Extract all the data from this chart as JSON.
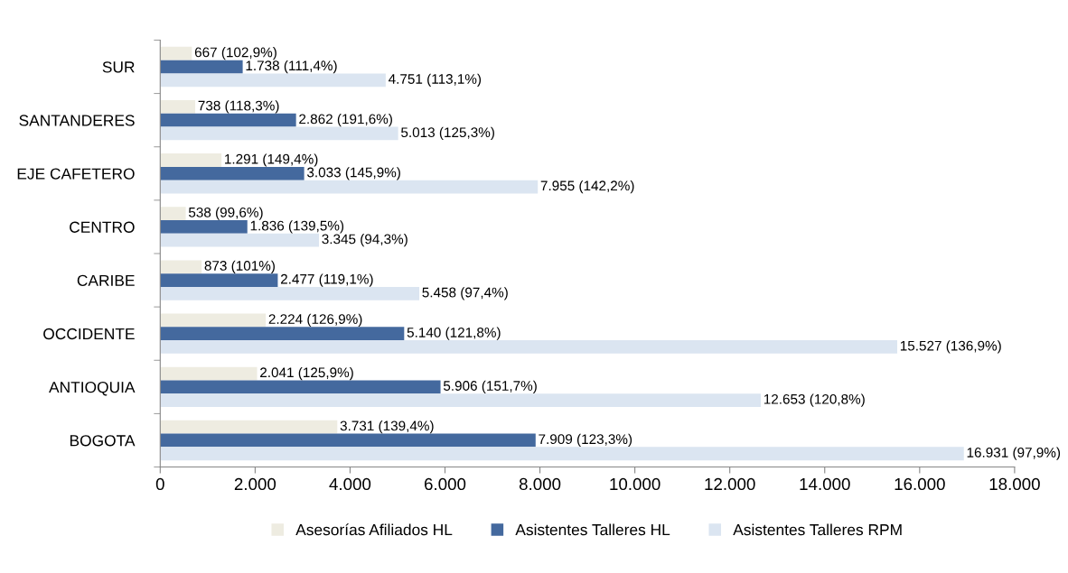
{
  "chart_data": {
    "type": "bar",
    "orientation": "horizontal",
    "categories": [
      "SUR",
      "SANTANDERES",
      "EJE CAFETERO",
      "CENTRO",
      "CARIBE",
      "OCCIDENTE",
      "ANTIOQUIA",
      "BOGOTA"
    ],
    "series": [
      {
        "name": "Asesorías Afiliados HL",
        "color": "#eeece1",
        "values": [
          667,
          738,
          1291,
          538,
          873,
          2224,
          2041,
          3731
        ],
        "value_labels": [
          "667 (102,9%)",
          "738 (118,3%)",
          "1.291 (149,4%)",
          "538 (99,6%)",
          "873 (101%)",
          "2.224 (126,9%)",
          "2.041 (125,9%)",
          "3.731 (139,4%)"
        ]
      },
      {
        "name": "Asistentes Talleres HL",
        "color": "#44699e",
        "values": [
          1738,
          2862,
          3033,
          1836,
          2477,
          5140,
          5906,
          7909
        ],
        "value_labels": [
          "1.738 (111,4%)",
          "2.862 (191,6%)",
          "3.033 (145,9%)",
          "1.836 (139,5%)",
          "2.477 (119,1%)",
          "5.140 (121,8%)",
          "5.906 (151,7%)",
          "7.909 (123,3%)"
        ]
      },
      {
        "name": "Asistentes Talleres RPM",
        "color": "#dbe5f1",
        "values": [
          4751,
          5013,
          7955,
          3345,
          5458,
          15527,
          12653,
          16931
        ],
        "value_labels": [
          "4.751 (113,1%)",
          "5.013 (125,3%)",
          "7.955 (142,2%)",
          "3.345 (94,3%)",
          "5.458 (97,4%)",
          "15.527 (136,9%)",
          "12.653 (120,8%)",
          "16.931 (97,9%)"
        ]
      }
    ],
    "xlim": [
      0,
      18000
    ],
    "xticks": [
      0,
      {
        "value": 2000,
        "label": "2.000"
      },
      {
        "value": 4000,
        "label": "4.000"
      },
      {
        "value": 6000,
        "label": "6.000"
      },
      {
        "value": 8000,
        "label": "8.000"
      },
      {
        "value": 10000,
        "label": "10.000"
      },
      {
        "value": 12000,
        "label": "12.000"
      },
      {
        "value": 14000,
        "label": "14.000"
      },
      {
        "value": 16000,
        "label": "16.000"
      },
      {
        "value": 18000,
        "label": "18.000"
      }
    ],
    "grid": false,
    "legend": "bottom"
  }
}
